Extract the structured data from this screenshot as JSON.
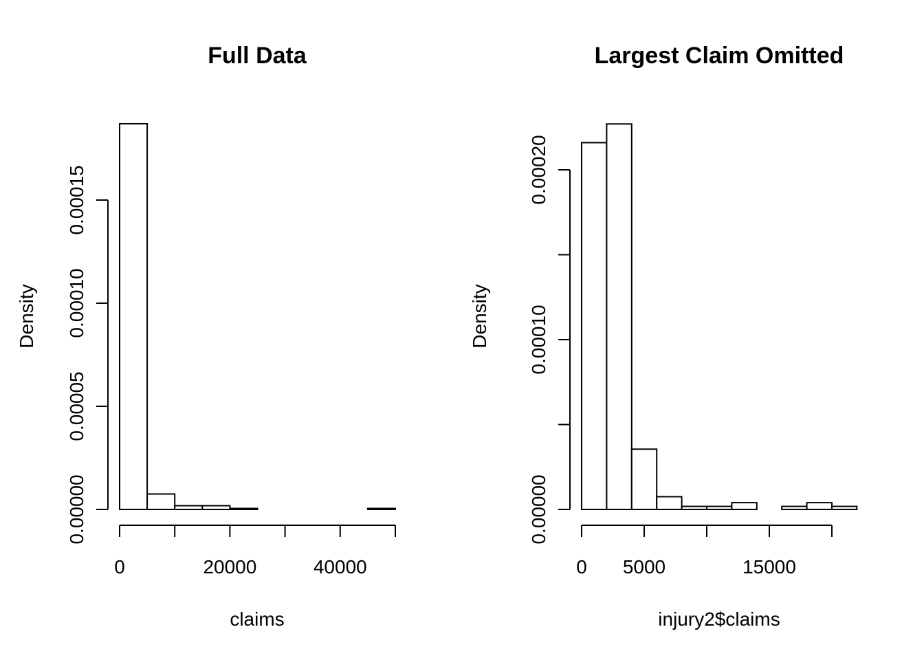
{
  "chart_data": [
    {
      "type": "bar",
      "title": "Full Data",
      "xlabel": "claims",
      "ylabel": "Density",
      "bin_edges": [
        0,
        5000,
        10000,
        15000,
        20000,
        25000,
        30000,
        35000,
        40000,
        45000,
        50000
      ],
      "values": [
        0.000187,
        7.5e-06,
        1.8e-06,
        1.8e-06,
        5e-07,
        0.0,
        0.0,
        0.0,
        0.0,
        5e-07
      ],
      "xlim": [
        0,
        50000
      ],
      "ylim": [
        0,
        0.00015
      ],
      "xticks": [
        0,
        10000,
        20000,
        30000,
        40000,
        50000
      ],
      "xtick_labels": [
        "0",
        "",
        "20000",
        "",
        "40000",
        ""
      ],
      "yticks": [
        0,
        5e-05,
        0.0001,
        0.00015
      ],
      "ytick_labels": [
        "0.00000",
        "0.00005",
        "0.00010",
        "0.00015"
      ],
      "grid": false
    },
    {
      "type": "bar",
      "title": "Largest Claim Omitted",
      "xlabel": "injury2$claims",
      "ylabel": "Density",
      "bin_edges": [
        0,
        2000,
        4000,
        6000,
        8000,
        10000,
        12000,
        14000,
        16000,
        18000,
        20000,
        22000
      ],
      "values": [
        0.000216,
        0.000227,
        3.55e-05,
        7.5e-06,
        1.8e-06,
        1.8e-06,
        4e-06,
        0.0,
        1.8e-06,
        4e-06,
        1.8e-06
      ],
      "xlim": [
        0,
        20000
      ],
      "ylim": [
        0,
        0.0002
      ],
      "xticks": [
        0,
        5000,
        10000,
        15000,
        20000
      ],
      "xtick_labels": [
        "0",
        "5000",
        "",
        "15000",
        ""
      ],
      "yticks": [
        0,
        5e-05,
        0.0001,
        0.00015,
        0.0002
      ],
      "ytick_labels": [
        "0.00000",
        "",
        "0.00010",
        "",
        "0.00020"
      ],
      "grid": false
    }
  ]
}
